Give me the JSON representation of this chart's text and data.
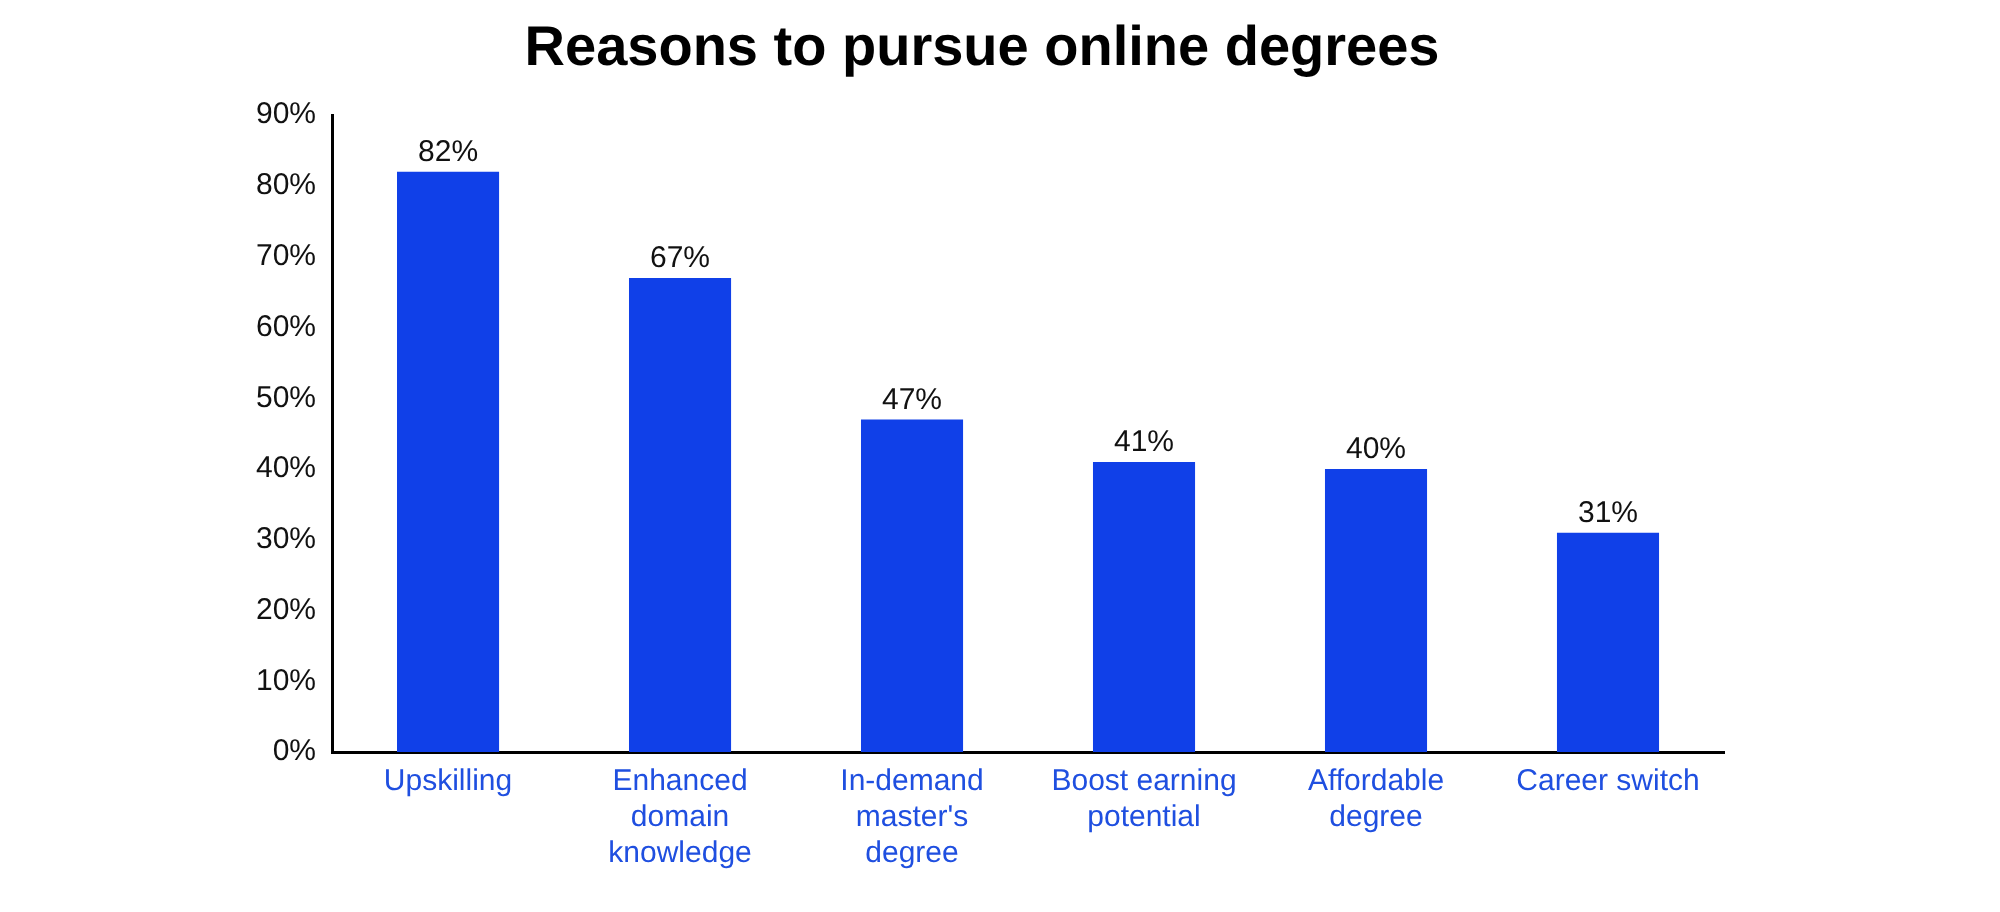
{
  "chart_data": {
    "type": "bar",
    "title": "Reasons to pursue online degrees",
    "categories": [
      "Upskilling",
      "Enhanced domain knowledge",
      "In-demand master's degree",
      "Boost earning potential",
      "Affordable degree",
      "Career switch"
    ],
    "values": [
      82,
      67,
      47,
      41,
      40,
      31
    ],
    "value_labels": [
      "82%",
      "67%",
      "47%",
      "41%",
      "40%",
      "31%"
    ],
    "color": "#1040e8",
    "ylim": [
      0,
      90
    ],
    "yticks": [
      {
        "value": 0,
        "label": "0%"
      },
      {
        "value": 10,
        "label": "10%"
      },
      {
        "value": 20,
        "label": "20%"
      },
      {
        "value": 30,
        "label": "30%"
      },
      {
        "value": 40,
        "label": "40%"
      },
      {
        "value": 50,
        "label": "50%"
      },
      {
        "value": 60,
        "label": "60%"
      },
      {
        "value": 70,
        "label": "70%"
      },
      {
        "value": 80,
        "label": "80%"
      },
      {
        "value": 90,
        "label": "90%"
      }
    ],
    "grid": false
  }
}
